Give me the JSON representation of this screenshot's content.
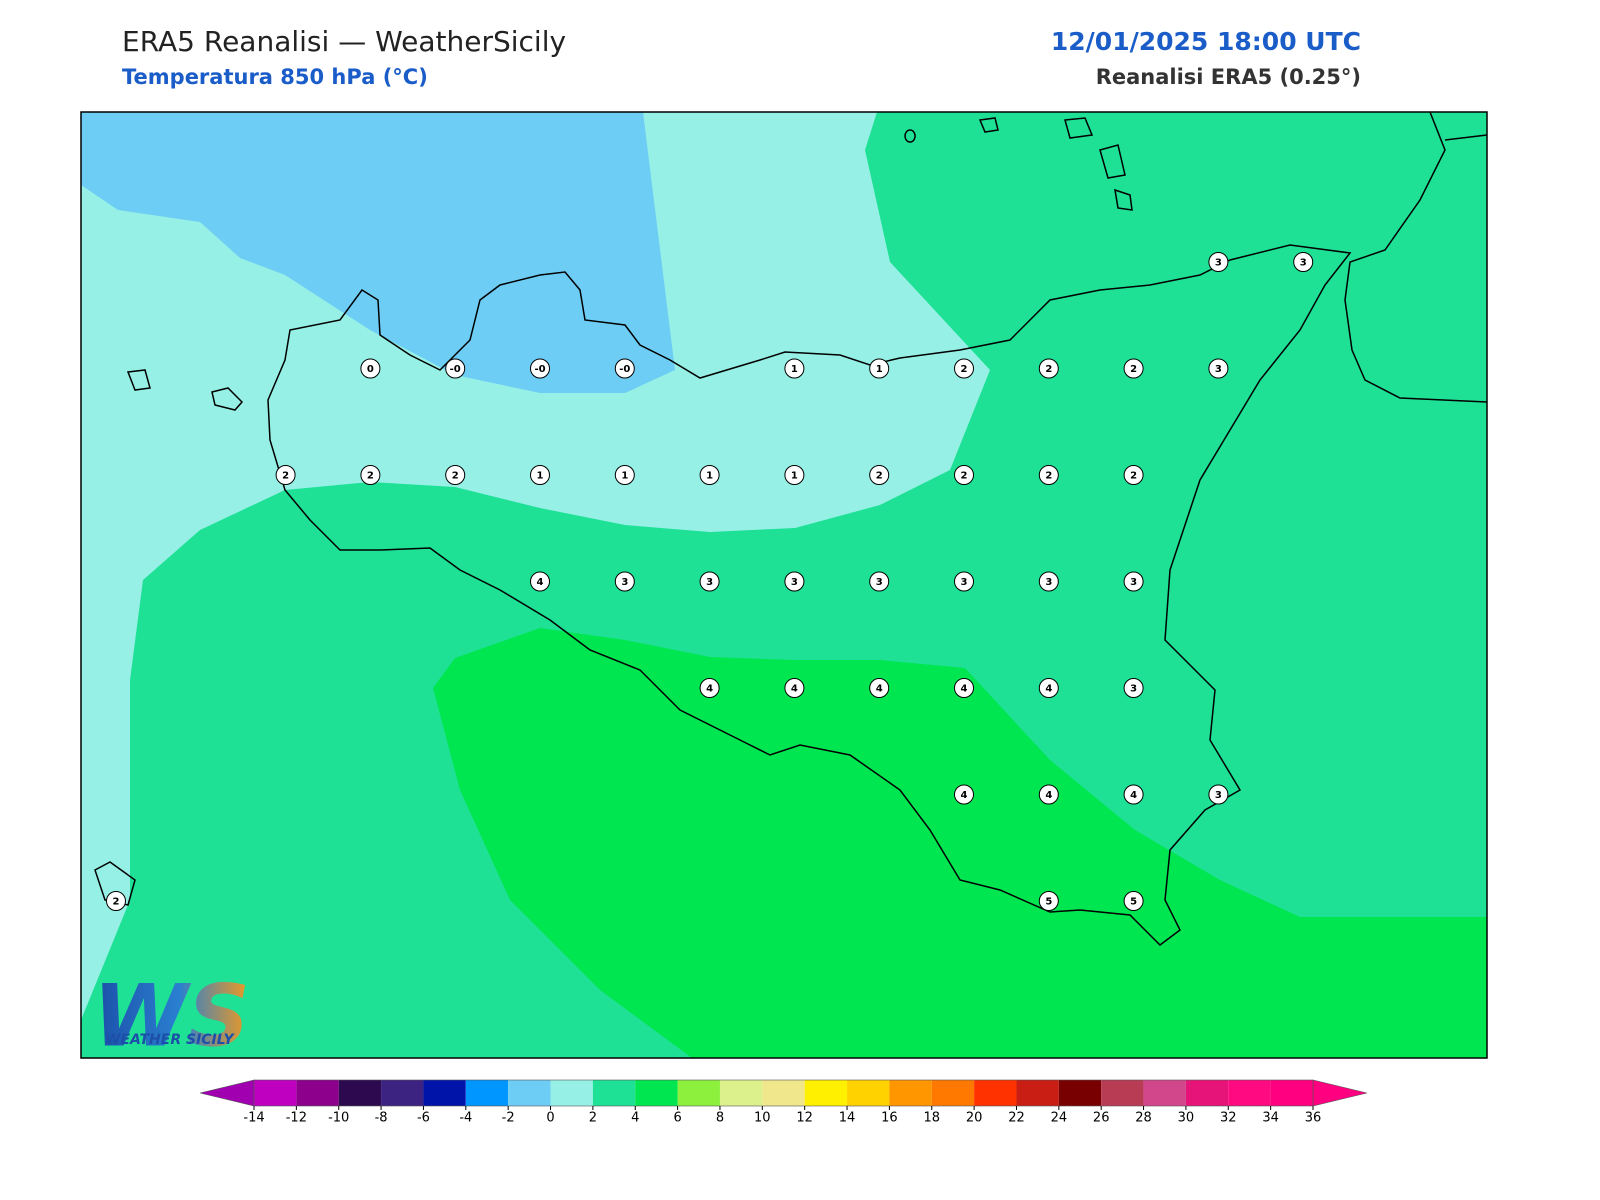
{
  "header": {
    "title": "ERA5 Reanalisi — WeatherSicily",
    "subtitle": "Temperatura 850 hPa (°C)",
    "datetime": "12/01/2025 18:00 UTC",
    "source": "Reanalisi ERA5 (0.25°)"
  },
  "map": {
    "grid_labels": [
      [
        null,
        null,
        null,
        null,
        null,
        null,
        null,
        null,
        null,
        null,
        null,
        null,
        null,
        "3",
        "3"
      ],
      [
        null,
        null,
        null,
        "0",
        "-0",
        "-0",
        "-0",
        null,
        "1",
        "1",
        "2",
        "2",
        "2",
        "3",
        null
      ],
      [
        null,
        null,
        "2",
        "2",
        "2",
        "1",
        "1",
        "1",
        "1",
        "2",
        "2",
        "2",
        "2",
        null,
        null
      ],
      [
        null,
        null,
        null,
        null,
        null,
        "4",
        "3",
        "3",
        "3",
        "3",
        "3",
        "3",
        "3",
        null,
        null
      ],
      [
        null,
        null,
        null,
        null,
        null,
        null,
        null,
        "4",
        "4",
        "4",
        "4",
        "4",
        "3",
        null,
        null
      ],
      [
        null,
        null,
        null,
        null,
        null,
        null,
        null,
        null,
        null,
        null,
        "4",
        "4",
        "4",
        "3",
        null
      ],
      [
        "2",
        null,
        null,
        null,
        null,
        null,
        null,
        null,
        null,
        null,
        null,
        "5",
        "5",
        null,
        null
      ]
    ]
  },
  "colorbar": {
    "ticks": [
      -14,
      -12,
      -10,
      -8,
      -6,
      -4,
      -2,
      0,
      2,
      4,
      6,
      8,
      10,
      12,
      14,
      16,
      18,
      20,
      22,
      24,
      26,
      28,
      30,
      32,
      34,
      36
    ],
    "colors": [
      "#c000c0",
      "#8c008c",
      "#2d0a50",
      "#3c2382",
      "#0014aa",
      "#0096ff",
      "#6ecdf5",
      "#96f0e6",
      "#1ee196",
      "#00e650",
      "#8cf03c",
      "#dcf08c",
      "#f0e68c",
      "#fff000",
      "#ffd200",
      "#ff9600",
      "#ff7800",
      "#ff3200",
      "#c81e14",
      "#780000",
      "#b93c55",
      "#d2468c",
      "#e61478",
      "#ff0a80",
      "#ff0080"
    ],
    "under_color": "#a000b0",
    "over_color": "#ff0080"
  },
  "logo": {
    "text": "WS",
    "caption": "WEATHER SICILY"
  }
}
